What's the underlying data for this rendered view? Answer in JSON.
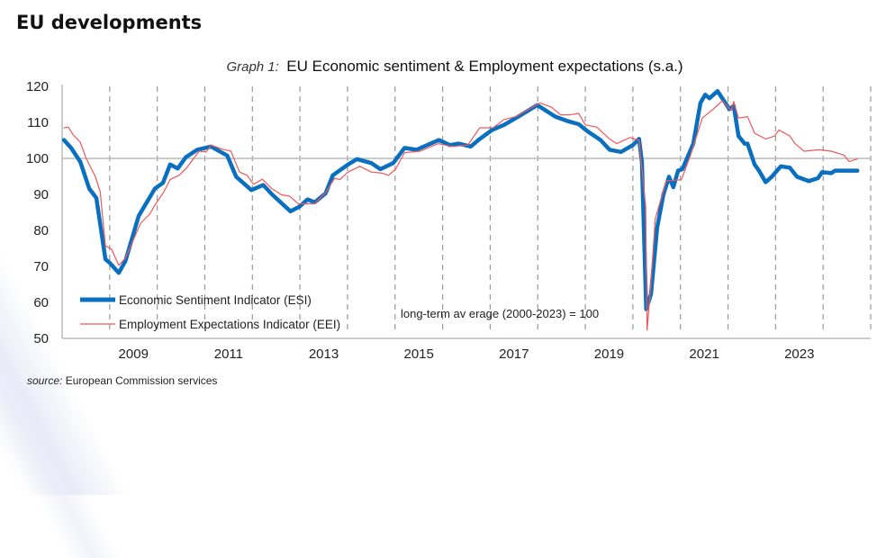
{
  "page": {
    "heading": "EU developments",
    "source_label": "source:",
    "source_text": "European Commission services"
  },
  "chart_data": {
    "type": "line",
    "title_prefix": "Graph 1:",
    "title": "EU Economic sentiment & Employment expectations (s.a.)",
    "xlabel": "",
    "ylabel": "",
    "xlim": [
      2008,
      2025
    ],
    "ylim": [
      50,
      120
    ],
    "yticks": [
      50,
      60,
      70,
      80,
      90,
      100,
      110,
      120
    ],
    "xtick_labels": [
      "2009",
      "2011",
      "2013",
      "2015",
      "2017",
      "2019",
      "2021",
      "2023"
    ],
    "reference_line": 100,
    "annotation": "long-term av erage (2000-2023) = 100",
    "legend_position": "bottom-left",
    "colors": {
      "esi": "#0b6fc0",
      "eei": "#f0585a",
      "grid": "#999999"
    },
    "series": [
      {
        "name": "Economic Sentiment Indicator (ESI)",
        "key": "esi",
        "points": [
          [
            2008.04,
            105.1
          ],
          [
            2008.19,
            102.9
          ],
          [
            2008.38,
            99.1
          ],
          [
            2008.57,
            91.6
          ],
          [
            2008.72,
            89
          ],
          [
            2008.91,
            72
          ],
          [
            2009.0,
            71
          ],
          [
            2009.19,
            68.2
          ],
          [
            2009.33,
            71.5
          ],
          [
            2009.61,
            84
          ],
          [
            2009.95,
            91.6
          ],
          [
            2010.12,
            93.2
          ],
          [
            2010.27,
            98.3
          ],
          [
            2010.43,
            97.2
          ],
          [
            2010.6,
            100.3
          ],
          [
            2010.84,
            102.4
          ],
          [
            2011.13,
            103.3
          ],
          [
            2011.47,
            100.8
          ],
          [
            2011.66,
            94.9
          ],
          [
            2011.98,
            91.2
          ],
          [
            2012.23,
            92.6
          ],
          [
            2012.42,
            89.9
          ],
          [
            2012.8,
            85.3
          ],
          [
            2012.99,
            86.6
          ],
          [
            2013.16,
            88.6
          ],
          [
            2013.31,
            87.8
          ],
          [
            2013.54,
            90.3
          ],
          [
            2013.69,
            95.3
          ],
          [
            2014.01,
            98.3
          ],
          [
            2014.2,
            99.8
          ],
          [
            2014.5,
            98.7
          ],
          [
            2014.69,
            97
          ],
          [
            2014.96,
            98.7
          ],
          [
            2015.2,
            102.9
          ],
          [
            2015.45,
            102.4
          ],
          [
            2015.92,
            105.1
          ],
          [
            2016.15,
            103.7
          ],
          [
            2016.34,
            104.1
          ],
          [
            2016.59,
            103.3
          ],
          [
            2016.78,
            105.4
          ],
          [
            2017.04,
            107.9
          ],
          [
            2017.29,
            109.3
          ],
          [
            2017.54,
            111.2
          ],
          [
            2017.99,
            114.8
          ],
          [
            2018.37,
            111.6
          ],
          [
            2018.62,
            110.4
          ],
          [
            2018.86,
            109.5
          ],
          [
            2019.05,
            107.5
          ],
          [
            2019.32,
            105.1
          ],
          [
            2019.51,
            102.4
          ],
          [
            2019.75,
            101.8
          ],
          [
            2020.0,
            103.7
          ],
          [
            2020.13,
            105.4
          ],
          [
            2020.19,
            99.1
          ],
          [
            2020.28,
            58.1
          ],
          [
            2020.38,
            62.3
          ],
          [
            2020.51,
            80.7
          ],
          [
            2020.64,
            89.9
          ],
          [
            2020.76,
            94.9
          ],
          [
            2020.85,
            92
          ],
          [
            2020.95,
            96.6
          ],
          [
            2021.04,
            97
          ],
          [
            2021.27,
            104.1
          ],
          [
            2021.42,
            115.4
          ],
          [
            2021.52,
            117.7
          ],
          [
            2021.61,
            116.7
          ],
          [
            2021.78,
            118.7
          ],
          [
            2022.03,
            113.7
          ],
          [
            2022.12,
            114.6
          ],
          [
            2022.22,
            106.2
          ],
          [
            2022.35,
            104.1
          ],
          [
            2022.41,
            104.1
          ],
          [
            2022.56,
            98.3
          ],
          [
            2022.65,
            96.6
          ],
          [
            2022.79,
            93.4
          ],
          [
            2022.92,
            94.9
          ],
          [
            2023.11,
            97.8
          ],
          [
            2023.3,
            97.4
          ],
          [
            2023.45,
            94.9
          ],
          [
            2023.7,
            93.7
          ],
          [
            2023.89,
            94.5
          ],
          [
            2023.98,
            96.2
          ],
          [
            2024.17,
            95.9
          ],
          [
            2024.25,
            96.6
          ],
          [
            2024.44,
            96.6
          ],
          [
            2024.72,
            96.6
          ]
        ]
      },
      {
        "name": "Employment Expectations Indicator (EEI)",
        "key": "eei",
        "points": [
          [
            2008.04,
            108.5
          ],
          [
            2008.13,
            108.7
          ],
          [
            2008.23,
            106.6
          ],
          [
            2008.38,
            104.5
          ],
          [
            2008.51,
            99.9
          ],
          [
            2008.7,
            94.9
          ],
          [
            2008.8,
            90.7
          ],
          [
            2008.91,
            75.7
          ],
          [
            2009.04,
            74.8
          ],
          [
            2009.19,
            70.3
          ],
          [
            2009.33,
            72.3
          ],
          [
            2009.65,
            82
          ],
          [
            2009.84,
            84.5
          ],
          [
            2009.95,
            87
          ],
          [
            2010.14,
            90.7
          ],
          [
            2010.27,
            94.1
          ],
          [
            2010.46,
            95.3
          ],
          [
            2010.62,
            97.4
          ],
          [
            2010.88,
            102
          ],
          [
            2011.03,
            101.8
          ],
          [
            2011.13,
            103.7
          ],
          [
            2011.36,
            102.6
          ],
          [
            2011.55,
            102
          ],
          [
            2011.73,
            96.2
          ],
          [
            2011.89,
            95.3
          ],
          [
            2012.02,
            92.8
          ],
          [
            2012.21,
            94.2
          ],
          [
            2012.4,
            91.7
          ],
          [
            2012.61,
            89.9
          ],
          [
            2012.78,
            89.5
          ],
          [
            2012.97,
            87.4
          ],
          [
            2013.31,
            87.4
          ],
          [
            2013.55,
            90.7
          ],
          [
            2013.73,
            94.5
          ],
          [
            2013.84,
            94.1
          ],
          [
            2014.01,
            96.2
          ],
          [
            2014.26,
            97.8
          ],
          [
            2014.5,
            96.2
          ],
          [
            2014.73,
            95.9
          ],
          [
            2014.86,
            95.3
          ],
          [
            2015.01,
            97
          ],
          [
            2015.2,
            101.6
          ],
          [
            2015.53,
            102
          ],
          [
            2015.91,
            104.1
          ],
          [
            2016.21,
            103.3
          ],
          [
            2016.53,
            103.7
          ],
          [
            2016.78,
            108.5
          ],
          [
            2017.06,
            108.5
          ],
          [
            2017.29,
            110.8
          ],
          [
            2017.54,
            111.6
          ],
          [
            2018.05,
            115.4
          ],
          [
            2018.29,
            114.2
          ],
          [
            2018.48,
            112.1
          ],
          [
            2018.67,
            112.1
          ],
          [
            2018.86,
            112.5
          ],
          [
            2019.0,
            109.3
          ],
          [
            2019.24,
            108.7
          ],
          [
            2019.51,
            105.4
          ],
          [
            2019.66,
            104.1
          ],
          [
            2019.94,
            105.8
          ],
          [
            2020.13,
            105
          ],
          [
            2020.27,
            86.6
          ],
          [
            2020.3,
            52.3
          ],
          [
            2020.38,
            65.7
          ],
          [
            2020.47,
            83.2
          ],
          [
            2020.7,
            93.7
          ],
          [
            2021.02,
            94.1
          ],
          [
            2021.21,
            100.8
          ],
          [
            2021.46,
            111.2
          ],
          [
            2021.69,
            113.7
          ],
          [
            2021.88,
            116
          ],
          [
            2022.07,
            113.3
          ],
          [
            2022.12,
            115.8
          ],
          [
            2022.22,
            111.2
          ],
          [
            2022.41,
            111.6
          ],
          [
            2022.56,
            107
          ],
          [
            2022.79,
            105.4
          ],
          [
            2022.98,
            106.2
          ],
          [
            2023.07,
            107.9
          ],
          [
            2023.3,
            106.2
          ],
          [
            2023.41,
            104.1
          ],
          [
            2023.6,
            102
          ],
          [
            2023.92,
            102.4
          ],
          [
            2024.17,
            102
          ],
          [
            2024.44,
            100.9
          ],
          [
            2024.55,
            99.1
          ],
          [
            2024.72,
            99.9
          ]
        ]
      }
    ]
  }
}
